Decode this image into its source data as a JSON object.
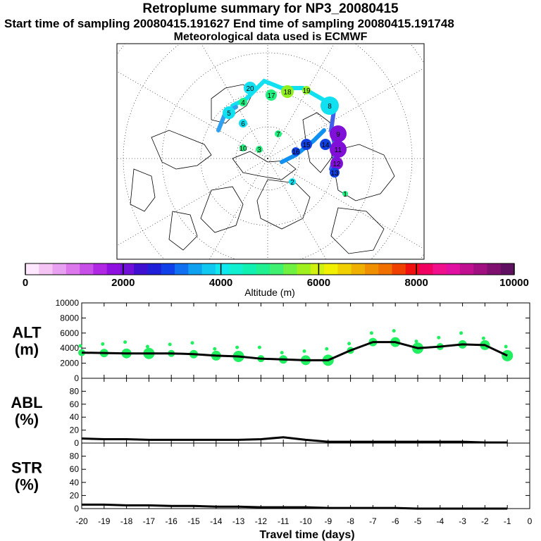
{
  "header": {
    "title": "Retroplume summary for NP3_20080415",
    "sampling_line": "Start time of sampling 20080415.191627     End time of sampling 20080415.191748",
    "met_line": "Meteorological data used is ECMWF"
  },
  "colorbar": {
    "tick_labels": [
      "0",
      "2000",
      "4000",
      "6000",
      "8000",
      "10000"
    ],
    "label": "Altitude (m)",
    "colors": [
      "#ffe8ff",
      "#f4c4f4",
      "#e8a0f0",
      "#dc78ec",
      "#c850e8",
      "#b028e4",
      "#9010e0",
      "#7010d8",
      "#4010d0",
      "#2020d8",
      "#1040e8",
      "#1070f0",
      "#10a0f0",
      "#10c8f0",
      "#10e8f0",
      "#10f0d0",
      "#10f0b0",
      "#20f090",
      "#40f070",
      "#70f040",
      "#a0f020",
      "#d0f010",
      "#f0f000",
      "#f0d000",
      "#f0b000",
      "#f09000",
      "#f07000",
      "#f04000",
      "#f01010",
      "#f00060",
      "#f0108c",
      "#e010a0",
      "#c01090",
      "#a01080",
      "#801070",
      "#601060"
    ]
  },
  "map": {
    "markers": [
      "8",
      "11",
      "9",
      "12",
      "13",
      "14",
      "15",
      "16",
      "17",
      "18",
      "19",
      "20",
      "4",
      "5",
      "6",
      "7",
      "10",
      "3",
      "2",
      "1"
    ],
    "bubble_colors": {
      "cyan": "#10e0f0",
      "green": "#20f080",
      "violet": "#8010d8",
      "blue": "#1040e0",
      "lime": "#90f020"
    }
  },
  "chart_data": [
    {
      "panel": "ALT",
      "type": "line",
      "ylabel": "ALT\n(m)",
      "ylabel_lines": [
        "ALT",
        "(m)"
      ],
      "ylim": [
        0,
        10000
      ],
      "yticks": [
        "0",
        "2000",
        "4000",
        "6000",
        "8000",
        "10000"
      ],
      "x": [
        -20,
        -19,
        -18,
        -17,
        -16,
        -15,
        -14,
        -13,
        -12,
        -11,
        -10,
        -9,
        -8,
        -7,
        -6,
        -5,
        -4,
        -3,
        -2,
        -1
      ],
      "values": [
        3400,
        3350,
        3300,
        3300,
        3300,
        3200,
        3000,
        2900,
        2600,
        2500,
        2400,
        2400,
        3700,
        4800,
        4800,
        4000,
        4200,
        4500,
        4400,
        3000
      ],
      "scatter_color": "#20f060"
    },
    {
      "panel": "ABL",
      "type": "line",
      "ylabel_lines": [
        "ABL",
        "(%)"
      ],
      "ylim": [
        0,
        100
      ],
      "yticks": [
        "0",
        "20",
        "40",
        "60",
        "80"
      ],
      "x": [
        -20,
        -19,
        -18,
        -17,
        -16,
        -15,
        -14,
        -13,
        -12,
        -11,
        -10,
        -9,
        -8,
        -7,
        -6,
        -5,
        -4,
        -3,
        -2,
        -1
      ],
      "values": [
        7,
        6,
        6,
        5,
        5,
        5,
        5,
        5,
        6,
        9,
        5,
        2,
        2,
        2,
        2,
        2,
        2,
        2,
        1,
        1
      ]
    },
    {
      "panel": "STR",
      "type": "line",
      "ylabel_lines": [
        "STR",
        "(%)"
      ],
      "ylim": [
        0,
        100
      ],
      "yticks": [
        "0",
        "20",
        "40",
        "60",
        "80"
      ],
      "x": [
        -20,
        -19,
        -18,
        -17,
        -16,
        -15,
        -14,
        -13,
        -12,
        -11,
        -10,
        -9,
        -8,
        -7,
        -6,
        -5,
        -4,
        -3,
        -2,
        -1
      ],
      "values": [
        6,
        6,
        5,
        5,
        4,
        4,
        3,
        3,
        2,
        2,
        2,
        1,
        1,
        1,
        1,
        0,
        0,
        0,
        0,
        0
      ]
    }
  ],
  "xaxis": {
    "tick_labels": [
      "-20",
      "-19",
      "-18",
      "-17",
      "-16",
      "-15",
      "-14",
      "-13",
      "-12",
      "-11",
      "-10",
      "-9",
      "-8",
      "-7",
      "-6",
      "-5",
      "-4",
      "-3",
      "-2",
      "-1",
      "0"
    ],
    "label": "Travel time (days)"
  }
}
